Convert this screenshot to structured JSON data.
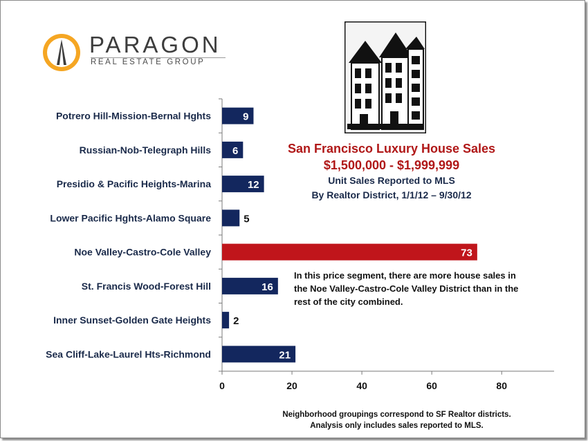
{
  "logo": {
    "name": "PARAGON",
    "subtitle": "REAL ESTATE GROUP"
  },
  "title_block": {
    "line1": "San Francisco Luxury House Sales",
    "line2": "$1,500,000 - $1,999,999",
    "line3": "Unit Sales Reported to MLS",
    "line4": "By Realtor District, 1/1/12 – 9/30/12"
  },
  "annotation": "In this price segment, there are more house sales in the Noe Valley-Castro-Cole Valley District than in the rest of the city combined.",
  "footnote": {
    "line1": "Neighborhood groupings correspond to SF Realtor districts.",
    "line2": "Analysis only includes sales reported to MLS."
  },
  "colors": {
    "bar": "#13275e",
    "highlight": "#c0151b",
    "title_red": "#b01818"
  },
  "chart_data": {
    "type": "bar",
    "orientation": "horizontal",
    "categories": [
      "Potrero Hill-Mission-Bernal Hghts",
      "Russian-Nob-Telegraph Hills",
      "Presidio & Pacific Heights-Marina",
      "Lower Pacific Hghts-Alamo Square",
      "Noe Valley-Castro-Cole Valley",
      "St. Francis Wood-Forest Hill",
      "Inner Sunset-Golden Gate Heights",
      "Sea Cliff-Lake-Laurel Hts-Richmond"
    ],
    "values": [
      9,
      6,
      12,
      5,
      73,
      16,
      2,
      21
    ],
    "highlight_index": 4,
    "xticks": [
      0,
      20,
      40,
      60,
      80
    ],
    "xlim": [
      0,
      95
    ],
    "grid": false,
    "title": "San Francisco Luxury House Sales",
    "xlabel": "",
    "ylabel": ""
  }
}
